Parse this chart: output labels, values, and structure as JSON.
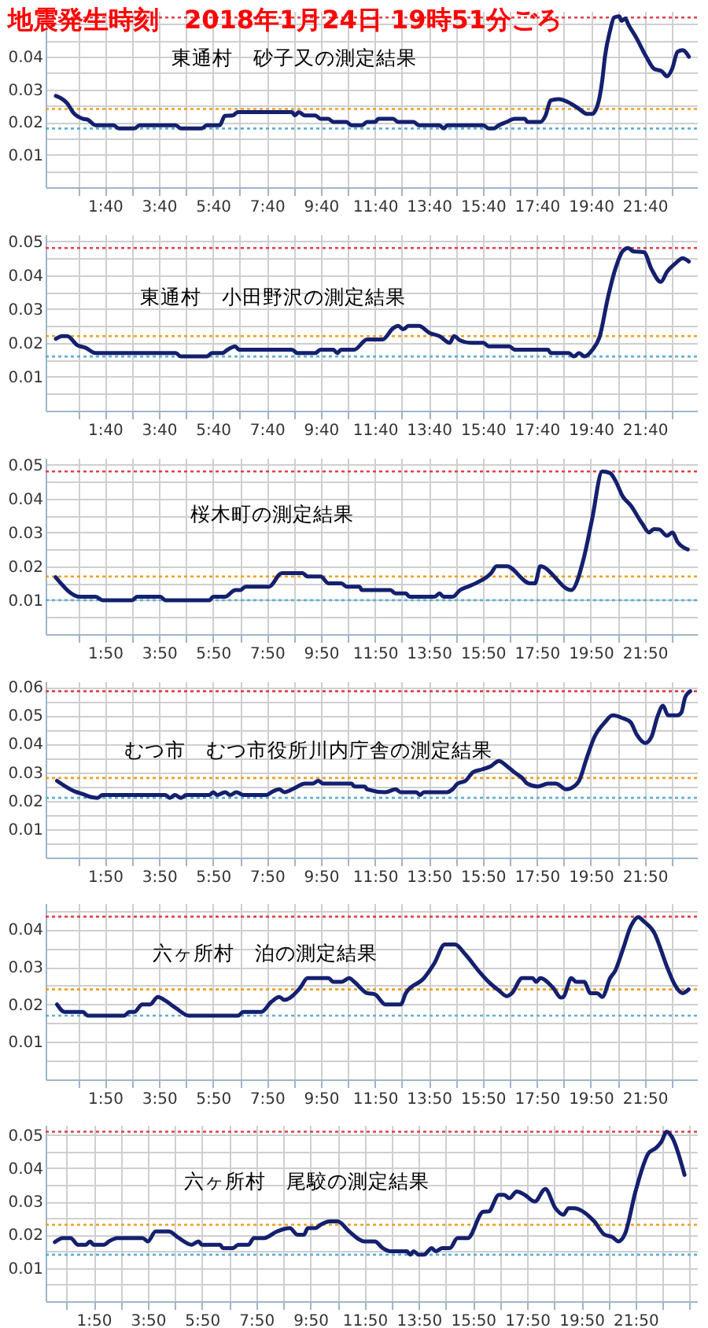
{
  "chart_data": [
    {
      "type": "line",
      "title": "地震発生時刻　2018年1月24日 19時51分ごろ",
      "annotations": [
        "東通村　砂子又の測定結果"
      ],
      "color": "#14206e",
      "grid": true,
      "xlim": [
        -0.53,
        23.6
      ],
      "ylim": [
        0,
        0.054
      ],
      "xticks": [
        {
          "value": 0.667,
          "label": null
        },
        {
          "value": 1.667,
          "label": "1:40"
        },
        {
          "value": 2.667,
          "label": null
        },
        {
          "value": 3.667,
          "label": "3:40"
        },
        {
          "value": 4.667,
          "label": null
        },
        {
          "value": 5.667,
          "label": "5:40"
        },
        {
          "value": 6.667,
          "label": null
        },
        {
          "value": 7.667,
          "label": "7:40"
        },
        {
          "value": 8.667,
          "label": null
        },
        {
          "value": 9.667,
          "label": "9:40"
        },
        {
          "value": 10.667,
          "label": null
        },
        {
          "value": 11.667,
          "label": "11:40"
        },
        {
          "value": 12.667,
          "label": null
        },
        {
          "value": 13.667,
          "label": "13:40"
        },
        {
          "value": 14.667,
          "label": null
        },
        {
          "value": 15.667,
          "label": "15:40"
        },
        {
          "value": 16.667,
          "label": null
        },
        {
          "value": 17.667,
          "label": "17:40"
        },
        {
          "value": 18.667,
          "label": null
        },
        {
          "value": 19.667,
          "label": "19:40"
        },
        {
          "value": 20.667,
          "label": null
        },
        {
          "value": 21.667,
          "label": "21:40"
        },
        {
          "value": 22.667,
          "label": null
        }
      ],
      "yticks": [
        {
          "value": 0.005,
          "label": null
        },
        0.01,
        {
          "value": 0.015,
          "label": null
        },
        0.02,
        {
          "value": 0.025,
          "label": null
        },
        0.03,
        {
          "value": 0.035,
          "label": null
        },
        0.04,
        {
          "value": 0.045,
          "label": null
        },
        {
          "value": 0.05,
          "label": null
        }
      ],
      "ref_lines": [
        {
          "axis": "y",
          "value": 0.052,
          "color": "#e0404a",
          "line_style": "dotted"
        },
        {
          "axis": "y",
          "value": 0.024,
          "color": "#f0a020",
          "line_style": "dotted"
        },
        {
          "axis": "y",
          "value": 0.018,
          "color": "#60b0d0",
          "line_style": "dotted"
        }
      ],
      "x": [
        -0.15,
        0.27,
        0.5,
        0.84,
        1.03,
        1.32,
        1.99,
        2.18,
        2.76,
        2.95,
        4.29,
        4.48,
        5.25,
        5.44,
        5.92,
        6.11,
        6.4,
        6.59,
        8.6,
        8.7,
        8.85,
        9.08,
        9.46,
        9.65,
        9.94,
        10.13,
        10.61,
        10.8,
        11.19,
        11.38,
        11.67,
        11.8,
        12.34,
        12.53,
        13.1,
        13.3,
        14.06,
        14.22,
        14.35,
        15.69,
        15.88,
        16.07,
        16.26,
        16.55,
        16.84,
        17.22,
        17.32,
        17.8,
        17.99,
        18.18,
        18.47,
        18.85,
        19.23,
        19.52,
        19.71,
        19.9,
        20.09,
        20.19,
        20.38,
        20.53,
        20.72,
        20.8,
        20.95,
        21.05,
        21.34,
        21.72,
        22.01,
        22.3,
        22.49,
        22.68,
        22.88,
        23.07,
        23.3
      ],
      "values": [
        0.028,
        0.0257,
        0.0228,
        0.021,
        0.0207,
        0.019,
        0.019,
        0.018,
        0.018,
        0.019,
        0.019,
        0.018,
        0.018,
        0.019,
        0.019,
        0.0219,
        0.022,
        0.023,
        0.023,
        0.022,
        0.023,
        0.022,
        0.022,
        0.021,
        0.021,
        0.02,
        0.02,
        0.019,
        0.019,
        0.02,
        0.02,
        0.021,
        0.021,
        0.02,
        0.02,
        0.019,
        0.019,
        0.018,
        0.019,
        0.019,
        0.018,
        0.018,
        0.019,
        0.02,
        0.021,
        0.021,
        0.02,
        0.02,
        0.022,
        0.0266,
        0.027,
        0.026,
        0.024,
        0.0225,
        0.0225,
        0.0247,
        0.0327,
        0.04,
        0.048,
        0.052,
        0.0524,
        0.051,
        0.0517,
        0.05,
        0.046,
        0.04,
        0.0363,
        0.0355,
        0.034,
        0.0363,
        0.0415,
        0.042,
        0.04
      ]
    },
    {
      "type": "line",
      "annotations": [
        "東通村　小田野沢の測定結果"
      ],
      "color": "#14206e",
      "grid": true,
      "xlim": [
        -0.53,
        23.6
      ],
      "ylim": [
        0,
        0.052
      ],
      "xticks": [
        {
          "value": 0.667,
          "label": null
        },
        {
          "value": 1.667,
          "label": "1:40"
        },
        {
          "value": 2.667,
          "label": null
        },
        {
          "value": 3.667,
          "label": "3:40"
        },
        {
          "value": 4.667,
          "label": null
        },
        {
          "value": 5.667,
          "label": "5:40"
        },
        {
          "value": 6.667,
          "label": null
        },
        {
          "value": 7.667,
          "label": "7:40"
        },
        {
          "value": 8.667,
          "label": null
        },
        {
          "value": 9.667,
          "label": "9:40"
        },
        {
          "value": 10.667,
          "label": null
        },
        {
          "value": 11.667,
          "label": "11:40"
        },
        {
          "value": 12.667,
          "label": null
        },
        {
          "value": 13.667,
          "label": "13:40"
        },
        {
          "value": 14.667,
          "label": null
        },
        {
          "value": 15.667,
          "label": "15:40"
        },
        {
          "value": 16.667,
          "label": null
        },
        {
          "value": 17.667,
          "label": "17:40"
        },
        {
          "value": 18.667,
          "label": null
        },
        {
          "value": 19.667,
          "label": "19:40"
        },
        {
          "value": 20.667,
          "label": null
        },
        {
          "value": 21.667,
          "label": "21:40"
        },
        {
          "value": 22.667,
          "label": null
        }
      ],
      "yticks": [
        {
          "value": 0.005,
          "label": null
        },
        0.01,
        {
          "value": 0.015,
          "label": null
        },
        0.02,
        {
          "value": 0.025,
          "label": null
        },
        0.03,
        {
          "value": 0.035,
          "label": null
        },
        0.04,
        {
          "value": 0.045,
          "label": null
        },
        0.05
      ],
      "ref_lines": [
        {
          "axis": "y",
          "value": 0.048,
          "color": "#e0404a",
          "line_style": "dotted"
        },
        {
          "axis": "y",
          "value": 0.022,
          "color": "#f0a020",
          "line_style": "dotted"
        },
        {
          "axis": "y",
          "value": 0.016,
          "color": "#60b0d0",
          "line_style": "dotted"
        }
      ],
      "x": [
        -0.15,
        0.08,
        0.27,
        0.65,
        0.94,
        1.32,
        4.29,
        4.48,
        5.44,
        5.63,
        6.02,
        6.21,
        6.49,
        6.63,
        8.6,
        8.79,
        9.46,
        9.65,
        10.13,
        10.27,
        10.42,
        10.9,
        11.38,
        11.95,
        12.34,
        12.53,
        12.72,
        12.91,
        13.3,
        13.68,
        14.06,
        14.44,
        14.6,
        14.83,
        15.21,
        15.69,
        15.88,
        16.65,
        16.84,
        18.08,
        18.18,
        18.85,
        19.04,
        19.23,
        19.43,
        19.71,
        20.0,
        20.29,
        20.57,
        20.86,
        21.05,
        21.24,
        21.63,
        21.92,
        22.26,
        22.49,
        22.78,
        23.07,
        23.3
      ],
      "values": [
        0.0212,
        0.022,
        0.022,
        0.0193,
        0.0186,
        0.017,
        0.017,
        0.016,
        0.016,
        0.017,
        0.017,
        0.018,
        0.019,
        0.018,
        0.018,
        0.017,
        0.017,
        0.018,
        0.018,
        0.017,
        0.018,
        0.018,
        0.021,
        0.021,
        0.0243,
        0.025,
        0.024,
        0.025,
        0.025,
        0.023,
        0.022,
        0.02,
        0.022,
        0.0207,
        0.02,
        0.02,
        0.019,
        0.019,
        0.018,
        0.018,
        0.017,
        0.017,
        0.016,
        0.017,
        0.016,
        0.0178,
        0.022,
        0.033,
        0.0417,
        0.0472,
        0.048,
        0.047,
        0.0468,
        0.0417,
        0.038,
        0.041,
        0.0433,
        0.045,
        0.044
      ]
    },
    {
      "type": "line",
      "annotations": [
        "桜木町の測定結果"
      ],
      "color": "#14206e",
      "grid": true,
      "xlim": [
        -0.37,
        23.77
      ],
      "ylim": [
        0,
        0.052
      ],
      "xticks": [
        {
          "value": 0.833,
          "label": null
        },
        {
          "value": 1.833,
          "label": "1:50"
        },
        {
          "value": 2.833,
          "label": null
        },
        {
          "value": 3.833,
          "label": "3:50"
        },
        {
          "value": 4.833,
          "label": null
        },
        {
          "value": 5.833,
          "label": "5:50"
        },
        {
          "value": 6.833,
          "label": null
        },
        {
          "value": 7.833,
          "label": "7:50"
        },
        {
          "value": 8.833,
          "label": null
        },
        {
          "value": 9.833,
          "label": "9:50"
        },
        {
          "value": 10.833,
          "label": null
        },
        {
          "value": 11.833,
          "label": "11:50"
        },
        {
          "value": 12.833,
          "label": null
        },
        {
          "value": 13.833,
          "label": "13:50"
        },
        {
          "value": 14.833,
          "label": null
        },
        {
          "value": 15.833,
          "label": "15:50"
        },
        {
          "value": 16.833,
          "label": null
        },
        {
          "value": 17.833,
          "label": "17:50"
        },
        {
          "value": 18.833,
          "label": null
        },
        {
          "value": 19.833,
          "label": "19:50"
        },
        {
          "value": 20.833,
          "label": null
        },
        {
          "value": 21.833,
          "label": "21:50"
        },
        {
          "value": 22.833,
          "label": null
        }
      ],
      "yticks": [
        {
          "value": 0.005,
          "label": null
        },
        0.01,
        {
          "value": 0.015,
          "label": null
        },
        0.02,
        {
          "value": 0.025,
          "label": null
        },
        0.03,
        {
          "value": 0.035,
          "label": null
        },
        0.04,
        {
          "value": 0.045,
          "label": null
        },
        0.05
      ],
      "ref_lines": [
        {
          "axis": "y",
          "value": 0.048,
          "color": "#e0404a",
          "line_style": "dotted"
        },
        {
          "axis": "y",
          "value": 0.017,
          "color": "#f0a020",
          "line_style": "dotted"
        },
        {
          "axis": "y",
          "value": 0.01,
          "color": "#60b0d0",
          "line_style": "dotted"
        }
      ],
      "x": [
        0.0,
        0.91,
        1.49,
        1.74,
        2.83,
        3.02,
        3.88,
        4.07,
        5.7,
        5.84,
        6.28,
        6.66,
        6.85,
        7.04,
        7.91,
        8.38,
        9.15,
        9.34,
        9.82,
        10.11,
        10.59,
        10.78,
        11.26,
        11.35,
        12.41,
        12.6,
        12.98,
        13.12,
        14.04,
        14.23,
        14.38,
        14.71,
        14.99,
        15.28,
        15.57,
        16.14,
        16.34,
        16.72,
        17.58,
        17.77,
        17.96,
        19.11,
        19.59,
        19.88,
        20.26,
        20.55,
        20.74,
        21.02,
        21.31,
        21.74,
        21.99,
        22.18,
        22.37,
        22.66,
        22.86,
        23.05,
        23.43
      ],
      "values": [
        0.0168,
        0.011,
        0.011,
        0.01,
        0.01,
        0.011,
        0.011,
        0.01,
        0.01,
        0.011,
        0.011,
        0.013,
        0.013,
        0.014,
        0.014,
        0.018,
        0.018,
        0.017,
        0.017,
        0.015,
        0.015,
        0.014,
        0.014,
        0.013,
        0.013,
        0.012,
        0.012,
        0.011,
        0.011,
        0.012,
        0.011,
        0.011,
        0.013,
        0.014,
        0.015,
        0.018,
        0.02,
        0.02,
        0.015,
        0.015,
        0.02,
        0.013,
        0.0229,
        0.0338,
        0.048,
        0.0475,
        0.0454,
        0.0406,
        0.038,
        0.0326,
        0.03,
        0.031,
        0.0309,
        0.029,
        0.03,
        0.0272,
        0.025
      ]
    },
    {
      "type": "line",
      "annotations": [
        "むつ市　むつ市役所川内庁舎の測定結果"
      ],
      "color": "#14206e",
      "grid": true,
      "xlim": [
        -0.37,
        23.77
      ],
      "ylim": [
        0,
        0.062
      ],
      "xticks": [
        {
          "value": 0.833,
          "label": null
        },
        {
          "value": 1.833,
          "label": "1:50"
        },
        {
          "value": 2.833,
          "label": null
        },
        {
          "value": 3.833,
          "label": "3:50"
        },
        {
          "value": 4.833,
          "label": null
        },
        {
          "value": 5.833,
          "label": "5:50"
        },
        {
          "value": 6.833,
          "label": null
        },
        {
          "value": 7.833,
          "label": "7:50"
        },
        {
          "value": 8.833,
          "label": null
        },
        {
          "value": 9.833,
          "label": "9:50"
        },
        {
          "value": 10.833,
          "label": null
        },
        {
          "value": 11.833,
          "label": "11:50"
        },
        {
          "value": 12.833,
          "label": null
        },
        {
          "value": 13.833,
          "label": "13:50"
        },
        {
          "value": 14.833,
          "label": null
        },
        {
          "value": 15.833,
          "label": "15:50"
        },
        {
          "value": 16.833,
          "label": null
        },
        {
          "value": 17.833,
          "label": "17:50"
        },
        {
          "value": 18.833,
          "label": null
        },
        {
          "value": 19.833,
          "label": "19:50"
        },
        {
          "value": 20.833,
          "label": null
        },
        {
          "value": 21.833,
          "label": "21:50"
        },
        {
          "value": 22.833,
          "label": null
        }
      ],
      "yticks": [
        {
          "value": 0.005,
          "label": null
        },
        0.01,
        {
          "value": 0.015,
          "label": null
        },
        0.02,
        {
          "value": 0.025,
          "label": null
        },
        0.03,
        {
          "value": 0.035,
          "label": null
        },
        0.04,
        {
          "value": 0.045,
          "label": null
        },
        0.05,
        {
          "value": 0.055,
          "label": null
        },
        0.06
      ],
      "ref_lines": [
        {
          "axis": "y",
          "value": 0.0585,
          "color": "#e0404a",
          "line_style": "dotted"
        },
        {
          "axis": "y",
          "value": 0.028,
          "color": "#f0a020",
          "line_style": "dotted"
        },
        {
          "axis": "y",
          "value": 0.021,
          "color": "#60b0d0",
          "line_style": "dotted"
        }
      ],
      "x": [
        0.05,
        0.72,
        1.01,
        1.3,
        1.55,
        1.74,
        4.07,
        4.23,
        4.42,
        4.65,
        4.84,
        5.7,
        5.84,
        5.99,
        6.28,
        6.47,
        6.7,
        6.95,
        7.81,
        8.0,
        8.29,
        8.48,
        8.77,
        9.25,
        9.53,
        9.73,
        9.92,
        10.97,
        11.07,
        11.45,
        11.55,
        12.22,
        12.6,
        12.79,
        13.37,
        13.5,
        13.65,
        14.51,
        14.71,
        14.9,
        15.19,
        15.47,
        15.8,
        16.14,
        16.43,
        16.72,
        17.0,
        17.29,
        17.48,
        17.87,
        18.25,
        18.54,
        18.92,
        19.21,
        19.4,
        19.69,
        19.97,
        20.36,
        20.64,
        21.03,
        21.31,
        21.54,
        21.85,
        22.08,
        22.31,
        22.51,
        22.7,
        23.04,
        23.19,
        23.33,
        23.52
      ],
      "values": [
        0.027,
        0.0232,
        0.0223,
        0.0213,
        0.021,
        0.022,
        0.022,
        0.021,
        0.022,
        0.021,
        0.022,
        0.022,
        0.023,
        0.022,
        0.023,
        0.022,
        0.023,
        0.022,
        0.022,
        0.023,
        0.024,
        0.023,
        0.024,
        0.026,
        0.026,
        0.027,
        0.026,
        0.026,
        0.025,
        0.025,
        0.024,
        0.023,
        0.024,
        0.023,
        0.023,
        0.022,
        0.023,
        0.023,
        0.024,
        0.026,
        0.027,
        0.03,
        0.031,
        0.0322,
        0.034,
        0.0322,
        0.03,
        0.028,
        0.026,
        0.025,
        0.026,
        0.026,
        0.024,
        0.025,
        0.027,
        0.0352,
        0.0424,
        0.0476,
        0.05,
        0.049,
        0.0476,
        0.0432,
        0.0403,
        0.0424,
        0.0497,
        0.0534,
        0.05,
        0.05,
        0.051,
        0.0563,
        0.0585
      ]
    },
    {
      "type": "line",
      "annotations": [
        "六ヶ所村　泊の測定結果"
      ],
      "color": "#14206e",
      "grid": true,
      "xlim": [
        -0.37,
        23.77
      ],
      "ylim": [
        0,
        0.047
      ],
      "xticks": [
        {
          "value": 0.833,
          "label": null
        },
        {
          "value": 1.833,
          "label": "1:50"
        },
        {
          "value": 2.833,
          "label": null
        },
        {
          "value": 3.833,
          "label": "3:50"
        },
        {
          "value": 4.833,
          "label": null
        },
        {
          "value": 5.833,
          "label": "5:50"
        },
        {
          "value": 6.833,
          "label": null
        },
        {
          "value": 7.833,
          "label": "7:50"
        },
        {
          "value": 8.833,
          "label": null
        },
        {
          "value": 9.833,
          "label": "9:50"
        },
        {
          "value": 10.833,
          "label": null
        },
        {
          "value": 11.833,
          "label": "11:50"
        },
        {
          "value": 12.833,
          "label": null
        },
        {
          "value": 13.833,
          "label": "13:50"
        },
        {
          "value": 14.833,
          "label": null
        },
        {
          "value": 15.833,
          "label": "15:50"
        },
        {
          "value": 16.833,
          "label": null
        },
        {
          "value": 17.833,
          "label": "17:50"
        },
        {
          "value": 18.833,
          "label": null
        },
        {
          "value": 19.833,
          "label": "19:50"
        },
        {
          "value": 20.833,
          "label": null
        },
        {
          "value": 21.833,
          "label": "21:50"
        },
        {
          "value": 22.833,
          "label": null
        }
      ],
      "yticks": [
        {
          "value": 0.005,
          "label": null
        },
        0.01,
        {
          "value": 0.015,
          "label": null
        },
        0.02,
        {
          "value": 0.025,
          "label": null
        },
        0.03,
        {
          "value": 0.035,
          "label": null
        },
        0.04,
        {
          "value": 0.045,
          "label": null
        }
      ],
      "ref_lines": [
        {
          "axis": "y",
          "value": 0.0434,
          "color": "#e0404a",
          "line_style": "dotted"
        },
        {
          "axis": "y",
          "value": 0.024,
          "color": "#f0a020",
          "line_style": "dotted"
        },
        {
          "axis": "y",
          "value": 0.017,
          "color": "#60b0d0",
          "line_style": "dotted"
        }
      ],
      "x": [
        0.05,
        0.34,
        1.01,
        1.2,
        2.54,
        2.73,
        2.92,
        3.21,
        3.5,
        3.79,
        4.07,
        4.46,
        4.94,
        6.76,
        6.95,
        7.62,
        8.0,
        8.29,
        8.48,
        9.06,
        9.34,
        10.11,
        10.3,
        10.59,
        10.88,
        11.07,
        11.55,
        11.83,
        12.22,
        12.79,
        12.98,
        13.65,
        14.04,
        14.42,
        14.8,
        15.19,
        15.67,
        16.05,
        16.43,
        16.72,
        16.91,
        17.29,
        17.68,
        17.81,
        17.96,
        18.44,
        18.73,
        18.82,
        19.11,
        19.3,
        19.59,
        19.82,
        20.07,
        20.26,
        20.55,
        20.74,
        21.03,
        21.31,
        21.6,
        21.79,
        22.18,
        22.66,
        22.95,
        23.24,
        23.46
      ],
      "values": [
        0.02,
        0.018,
        0.018,
        0.017,
        0.017,
        0.018,
        0.018,
        0.02,
        0.02,
        0.022,
        0.021,
        0.019,
        0.017,
        0.017,
        0.018,
        0.018,
        0.0207,
        0.022,
        0.0212,
        0.0244,
        0.027,
        0.027,
        0.026,
        0.026,
        0.027,
        0.026,
        0.023,
        0.0227,
        0.02,
        0.02,
        0.023,
        0.027,
        0.031,
        0.036,
        0.036,
        0.0333,
        0.029,
        0.026,
        0.0237,
        0.0222,
        0.023,
        0.027,
        0.027,
        0.026,
        0.027,
        0.0244,
        0.0218,
        0.022,
        0.027,
        0.026,
        0.026,
        0.023,
        0.023,
        0.022,
        0.027,
        0.029,
        0.0348,
        0.0407,
        0.0433,
        0.0422,
        0.0392,
        0.03,
        0.0252,
        0.023,
        0.024
      ]
    },
    {
      "type": "line",
      "annotations": [
        "六ヶ所村　尾駮の測定結果"
      ],
      "color": "#14206e",
      "grid": true,
      "xlim": [
        0.06,
        24.1
      ],
      "ylim": [
        0,
        0.053
      ],
      "xticks": [
        {
          "value": 0.833,
          "label": null
        },
        {
          "value": 1.833,
          "label": "1:50"
        },
        {
          "value": 2.833,
          "label": null
        },
        {
          "value": 3.833,
          "label": "3:50"
        },
        {
          "value": 4.833,
          "label": null
        },
        {
          "value": 5.833,
          "label": "5:50"
        },
        {
          "value": 6.833,
          "label": null
        },
        {
          "value": 7.833,
          "label": "7:50"
        },
        {
          "value": 8.833,
          "label": null
        },
        {
          "value": 9.833,
          "label": "9:50"
        },
        {
          "value": 10.833,
          "label": null
        },
        {
          "value": 11.833,
          "label": "11:50"
        },
        {
          "value": 12.833,
          "label": null
        },
        {
          "value": 13.833,
          "label": "13:50"
        },
        {
          "value": 14.833,
          "label": null
        },
        {
          "value": 15.833,
          "label": "15:50"
        },
        {
          "value": 16.833,
          "label": null
        },
        {
          "value": 17.833,
          "label": "17:50"
        },
        {
          "value": 18.833,
          "label": null
        },
        {
          "value": 19.833,
          "label": "19:50"
        },
        {
          "value": 20.833,
          "label": null
        },
        {
          "value": 21.833,
          "label": "21:50"
        },
        {
          "value": 22.833,
          "label": null
        },
        {
          "value": 23.833,
          "label": null
        }
      ],
      "yticks": [
        {
          "value": 0.005,
          "label": null
        },
        0.01,
        {
          "value": 0.015,
          "label": null
        },
        0.02,
        {
          "value": 0.025,
          "label": null
        },
        0.03,
        {
          "value": 0.035,
          "label": null
        },
        0.04,
        {
          "value": 0.045,
          "label": null
        },
        0.05
      ],
      "ref_lines": [
        {
          "axis": "y",
          "value": 0.051,
          "color": "#e0404a",
          "line_style": "dotted"
        },
        {
          "axis": "y",
          "value": 0.023,
          "color": "#f0a020",
          "line_style": "dotted"
        },
        {
          "axis": "y",
          "value": 0.014,
          "color": "#60b0d0",
          "line_style": "dotted"
        }
      ],
      "x": [
        0.4,
        0.69,
        0.98,
        1.26,
        1.55,
        1.7,
        1.83,
        2.21,
        2.4,
        2.69,
        3.64,
        3.83,
        4.12,
        4.6,
        4.98,
        5.45,
        5.7,
        5.83,
        6.5,
        6.6,
        6.98,
        7.17,
        7.55,
        7.74,
        8.12,
        8.6,
        9.07,
        9.36,
        9.59,
        9.74,
        10.02,
        10.21,
        10.54,
        10.84,
        11.26,
        11.83,
        12.21,
        12.5,
        12.79,
        13.4,
        13.51,
        13.64,
        13.83,
        14.02,
        14.31,
        14.46,
        14.69,
        14.98,
        15.26,
        15.64,
        16.21,
        16.41,
        16.79,
        16.98,
        17.17,
        17.45,
        17.74,
        18.12,
        18.5,
        18.88,
        19.17,
        19.36,
        19.55,
        20.31,
        20.69,
        20.98,
        21.2,
        21.45,
        21.83,
        22.31,
        22.6,
        22.79,
        22.98,
        23.17,
        23.64
      ],
      "values": [
        0.0178,
        0.019,
        0.019,
        0.017,
        0.017,
        0.018,
        0.017,
        0.017,
        0.018,
        0.019,
        0.019,
        0.018,
        0.021,
        0.021,
        0.019,
        0.017,
        0.018,
        0.017,
        0.017,
        0.016,
        0.016,
        0.017,
        0.017,
        0.019,
        0.019,
        0.021,
        0.022,
        0.02,
        0.02,
        0.022,
        0.022,
        0.023,
        0.024,
        0.024,
        0.021,
        0.018,
        0.018,
        0.016,
        0.015,
        0.015,
        0.014,
        0.015,
        0.014,
        0.014,
        0.016,
        0.015,
        0.016,
        0.016,
        0.019,
        0.019,
        0.0269,
        0.027,
        0.032,
        0.032,
        0.031,
        0.033,
        0.032,
        0.03,
        0.0338,
        0.0279,
        0.026,
        0.028,
        0.028,
        0.024,
        0.02,
        0.0193,
        0.018,
        0.0204,
        0.033,
        0.0445,
        0.0462,
        0.048,
        0.051,
        0.0495,
        0.038
      ]
    }
  ]
}
